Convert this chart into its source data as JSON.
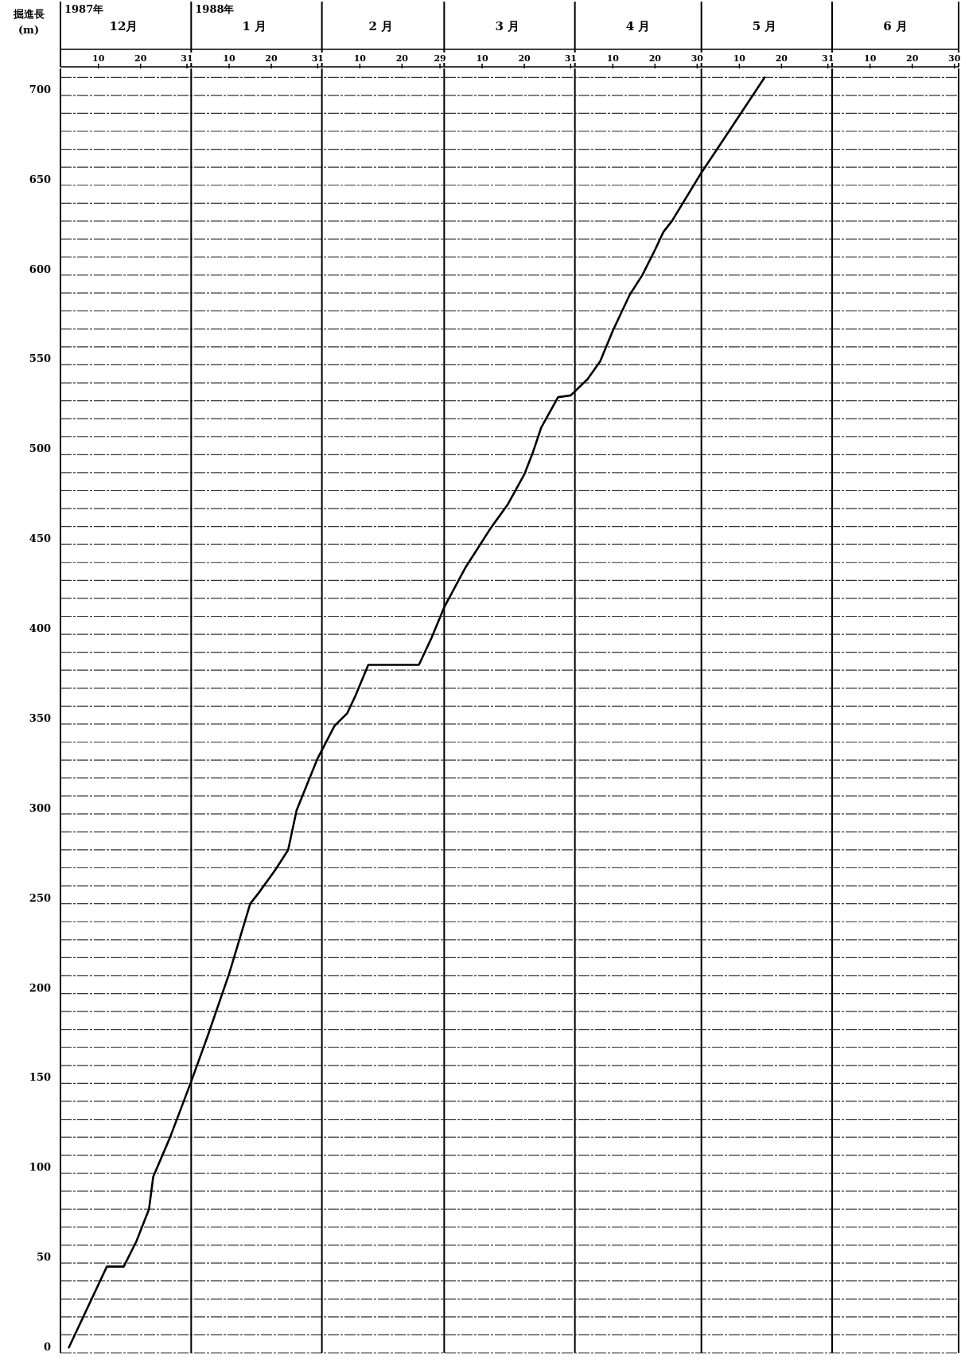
{
  "chart_data": {
    "type": "line",
    "ylabel": "掘進長 (m)",
    "x": [
      "1987-12-03",
      "1987-12-12",
      "1987-12-16",
      "1987-12-19",
      "1987-12-22",
      "1987-12-23",
      "1987-12-27",
      "1988-01-01",
      "1988-01-05",
      "1988-01-10",
      "1988-01-15",
      "1988-01-17",
      "1988-01-21",
      "1988-01-24",
      "1988-01-26",
      "1988-01-31",
      "1988-02-04",
      "1988-02-07",
      "1988-02-09",
      "1988-02-12",
      "1988-02-24",
      "1988-02-27",
      "1988-03-01",
      "1988-03-06",
      "1988-03-09",
      "1988-03-12",
      "1988-03-16",
      "1988-03-20",
      "1988-03-22",
      "1988-03-24",
      "1988-03-28",
      "1988-03-31",
      "1988-04-04",
      "1988-04-07",
      "1988-04-10",
      "1988-04-14",
      "1988-04-17",
      "1988-04-20",
      "1988-04-22",
      "1988-04-24",
      "1988-05-01",
      "1988-05-05",
      "1988-05-16"
    ],
    "series": [
      {
        "color": "#000000",
        "values": [
          3,
          48,
          48,
          62,
          80,
          98,
          120,
          151,
          177,
          211,
          250,
          256,
          269,
          280,
          302,
          331,
          349,
          356,
          366,
          383,
          383,
          398,
          415,
          437,
          448,
          459,
          472,
          489,
          501,
          515,
          532,
          533,
          542,
          552,
          569,
          589,
          600,
          614,
          624,
          630,
          657,
          671,
          710
        ]
      }
    ],
    "xlim": [
      "1987-12-01",
      "1988-07-01"
    ],
    "xticks": [
      {
        "value": "1987-12-10",
        "label": "10"
      },
      {
        "value": "1987-12-20",
        "label": "20"
      },
      {
        "value": "1987-12-31",
        "label": "31"
      },
      {
        "value": "1988-01-10",
        "label": "10"
      },
      {
        "value": "1988-01-20",
        "label": "20"
      },
      {
        "value": "1988-01-31",
        "label": "31"
      },
      {
        "value": "1988-02-10",
        "label": "10"
      },
      {
        "value": "1988-02-20",
        "label": "20"
      },
      {
        "value": "1988-02-29",
        "label": "29"
      },
      {
        "value": "1988-03-10",
        "label": "10"
      },
      {
        "value": "1988-03-20",
        "label": "20"
      },
      {
        "value": "1988-03-31",
        "label": "31"
      },
      {
        "value": "1988-04-10",
        "label": "10"
      },
      {
        "value": "1988-04-20",
        "label": "20"
      },
      {
        "value": "1988-04-30",
        "label": "30"
      },
      {
        "value": "1988-05-10",
        "label": "10"
      },
      {
        "value": "1988-05-20",
        "label": "20"
      },
      {
        "value": "1988-05-31",
        "label": "31"
      },
      {
        "value": "1988-06-10",
        "label": "10"
      },
      {
        "value": "1988-06-20",
        "label": "20"
      },
      {
        "value": "1988-06-30",
        "label": "30"
      }
    ],
    "x2lim": [
      "1987-12-01",
      "1988-07-01"
    ],
    "x2ticks": [
      {
        "value": "1987-12-16",
        "label": "12月"
      },
      {
        "value": "1988-01-16",
        "label": "1 月"
      },
      {
        "value": "1988-02-15",
        "label": "2 月"
      },
      {
        "value": "1988-03-16",
        "label": "3 月"
      },
      {
        "value": "1988-04-16",
        "label": "4 月"
      },
      {
        "value": "1988-05-16",
        "label": "5 月"
      },
      {
        "value": "1988-06-16",
        "label": "6 月"
      }
    ],
    "ylim": [
      0,
      715
    ],
    "yticks": [
      0,
      {
        "value": 10,
        "label": null
      },
      {
        "value": 20,
        "label": null
      },
      {
        "value": 30,
        "label": null
      },
      {
        "value": 40,
        "label": null
      },
      50,
      {
        "value": 60,
        "label": null
      },
      {
        "value": 70,
        "label": null
      },
      {
        "value": 80,
        "label": null
      },
      {
        "value": 90,
        "label": null
      },
      100,
      {
        "value": 110,
        "label": null
      },
      {
        "value": 120,
        "label": null
      },
      {
        "value": 130,
        "label": null
      },
      {
        "value": 140,
        "label": null
      },
      150,
      {
        "value": 160,
        "label": null
      },
      {
        "value": 170,
        "label": null
      },
      {
        "value": 180,
        "label": null
      },
      {
        "value": 190,
        "label": null
      },
      200,
      {
        "value": 210,
        "label": null
      },
      {
        "value": 220,
        "label": null
      },
      {
        "value": 230,
        "label": null
      },
      {
        "value": 240,
        "label": null
      },
      250,
      {
        "value": 260,
        "label": null
      },
      {
        "value": 270,
        "label": null
      },
      {
        "value": 280,
        "label": null
      },
      {
        "value": 290,
        "label": null
      },
      300,
      {
        "value": 310,
        "label": null
      },
      {
        "value": 320,
        "label": null
      },
      {
        "value": 330,
        "label": null
      },
      {
        "value": 340,
        "label": null
      },
      350,
      {
        "value": 360,
        "label": null
      },
      {
        "value": 370,
        "label": null
      },
      {
        "value": 380,
        "label": null
      },
      {
        "value": 390,
        "label": null
      },
      400,
      {
        "value": 410,
        "label": null
      },
      {
        "value": 420,
        "label": null
      },
      {
        "value": 430,
        "label": null
      },
      {
        "value": 440,
        "label": null
      },
      450,
      {
        "value": 460,
        "label": null
      },
      {
        "value": 470,
        "label": null
      },
      {
        "value": 480,
        "label": null
      },
      {
        "value": 490,
        "label": null
      },
      500,
      {
        "value": 510,
        "label": null
      },
      {
        "value": 520,
        "label": null
      },
      {
        "value": 530,
        "label": null
      },
      {
        "value": 540,
        "label": null
      },
      550,
      {
        "value": 560,
        "label": null
      },
      {
        "value": 570,
        "label": null
      },
      {
        "value": 580,
        "label": null
      },
      {
        "value": 590,
        "label": null
      },
      600,
      {
        "value": 610,
        "label": null
      },
      {
        "value": 620,
        "label": null
      },
      {
        "value": 630,
        "label": null
      },
      {
        "value": 640,
        "label": null
      },
      650,
      {
        "value": 660,
        "label": null
      },
      {
        "value": 670,
        "label": null
      },
      {
        "value": 680,
        "label": null
      },
      {
        "value": 690,
        "label": null
      },
      700,
      {
        "value": 710,
        "label": null
      }
    ],
    "grid": "y",
    "ref_lines": [
      {
        "axis": "x",
        "value": "1988-01-01",
        "color": "#000000"
      },
      {
        "axis": "x",
        "value": "1988-02-01",
        "color": "#000000"
      },
      {
        "axis": "x",
        "value": "1988-03-01",
        "color": "#000000"
      },
      {
        "axis": "x",
        "value": "1988-04-01",
        "color": "#000000"
      },
      {
        "axis": "x",
        "value": "1988-05-01",
        "color": "#000000"
      },
      {
        "axis": "x",
        "value": "1988-06-01",
        "color": "#000000"
      }
    ],
    "annotations": [
      "1987年",
      "1988年"
    ]
  }
}
